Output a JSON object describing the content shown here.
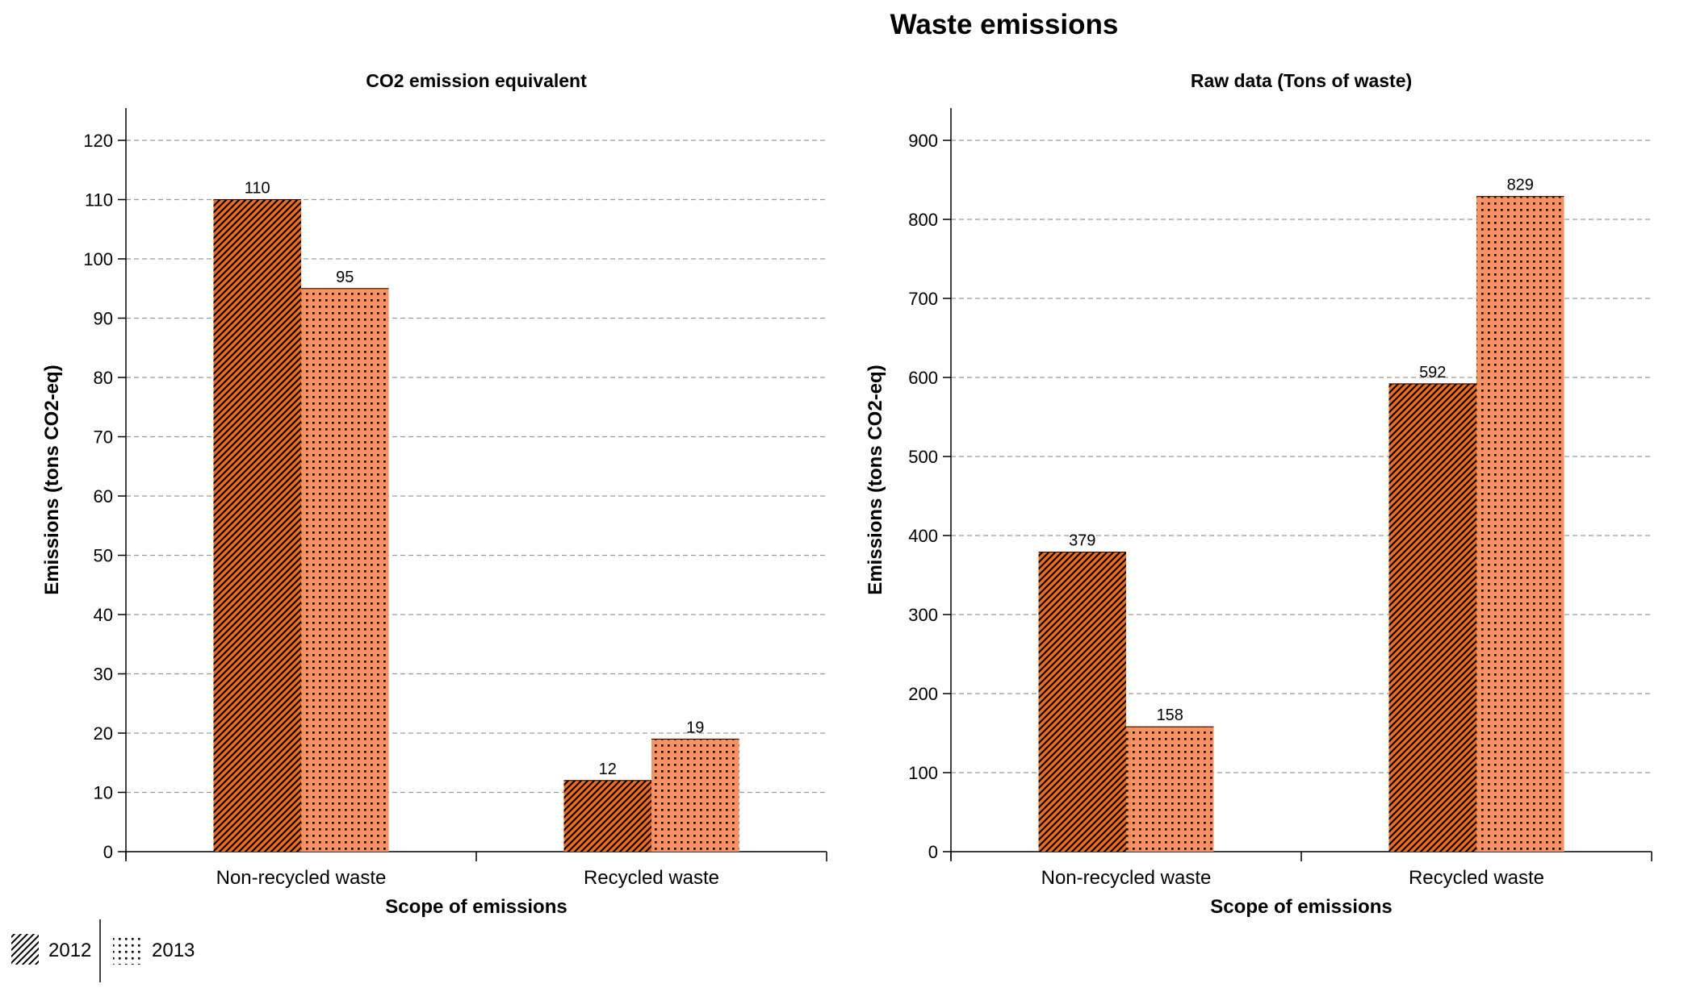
{
  "title": "Waste emissions",
  "legend": [
    {
      "label": "2012",
      "pattern": "hatch"
    },
    {
      "label": "2013",
      "pattern": "dots"
    }
  ],
  "colors": {
    "series_2012": "#f26d13",
    "series_2013": "#f9915e",
    "pattern_ink": "#000000",
    "grid": "#999999"
  },
  "chart_data": [
    {
      "type": "bar",
      "title": "CO2 emission equivalent",
      "xlabel": "Scope of emissions",
      "ylabel": "Emissions (tons CO2-eq)",
      "categories": [
        "Non-recycled waste",
        "Recycled waste"
      ],
      "series": [
        {
          "name": "2012",
          "values": [
            110,
            12
          ]
        },
        {
          "name": "2013",
          "values": [
            95,
            19
          ]
        }
      ],
      "ylim": [
        0,
        120
      ],
      "yticks": [
        0,
        10,
        20,
        30,
        40,
        50,
        60,
        70,
        80,
        90,
        100,
        110,
        120
      ],
      "grid": true
    },
    {
      "type": "bar",
      "title": "Raw data (Tons of waste)",
      "xlabel": "Scope of emissions",
      "ylabel": "Emissions (tons CO2-eq)",
      "categories": [
        "Non-recycled waste",
        "Recycled waste"
      ],
      "series": [
        {
          "name": "2012",
          "values": [
            379,
            592
          ]
        },
        {
          "name": "2013",
          "values": [
            158,
            829
          ]
        }
      ],
      "ylim": [
        0,
        900
      ],
      "yticks": [
        0,
        100,
        200,
        300,
        400,
        500,
        600,
        700,
        800,
        900
      ],
      "grid": true
    }
  ]
}
